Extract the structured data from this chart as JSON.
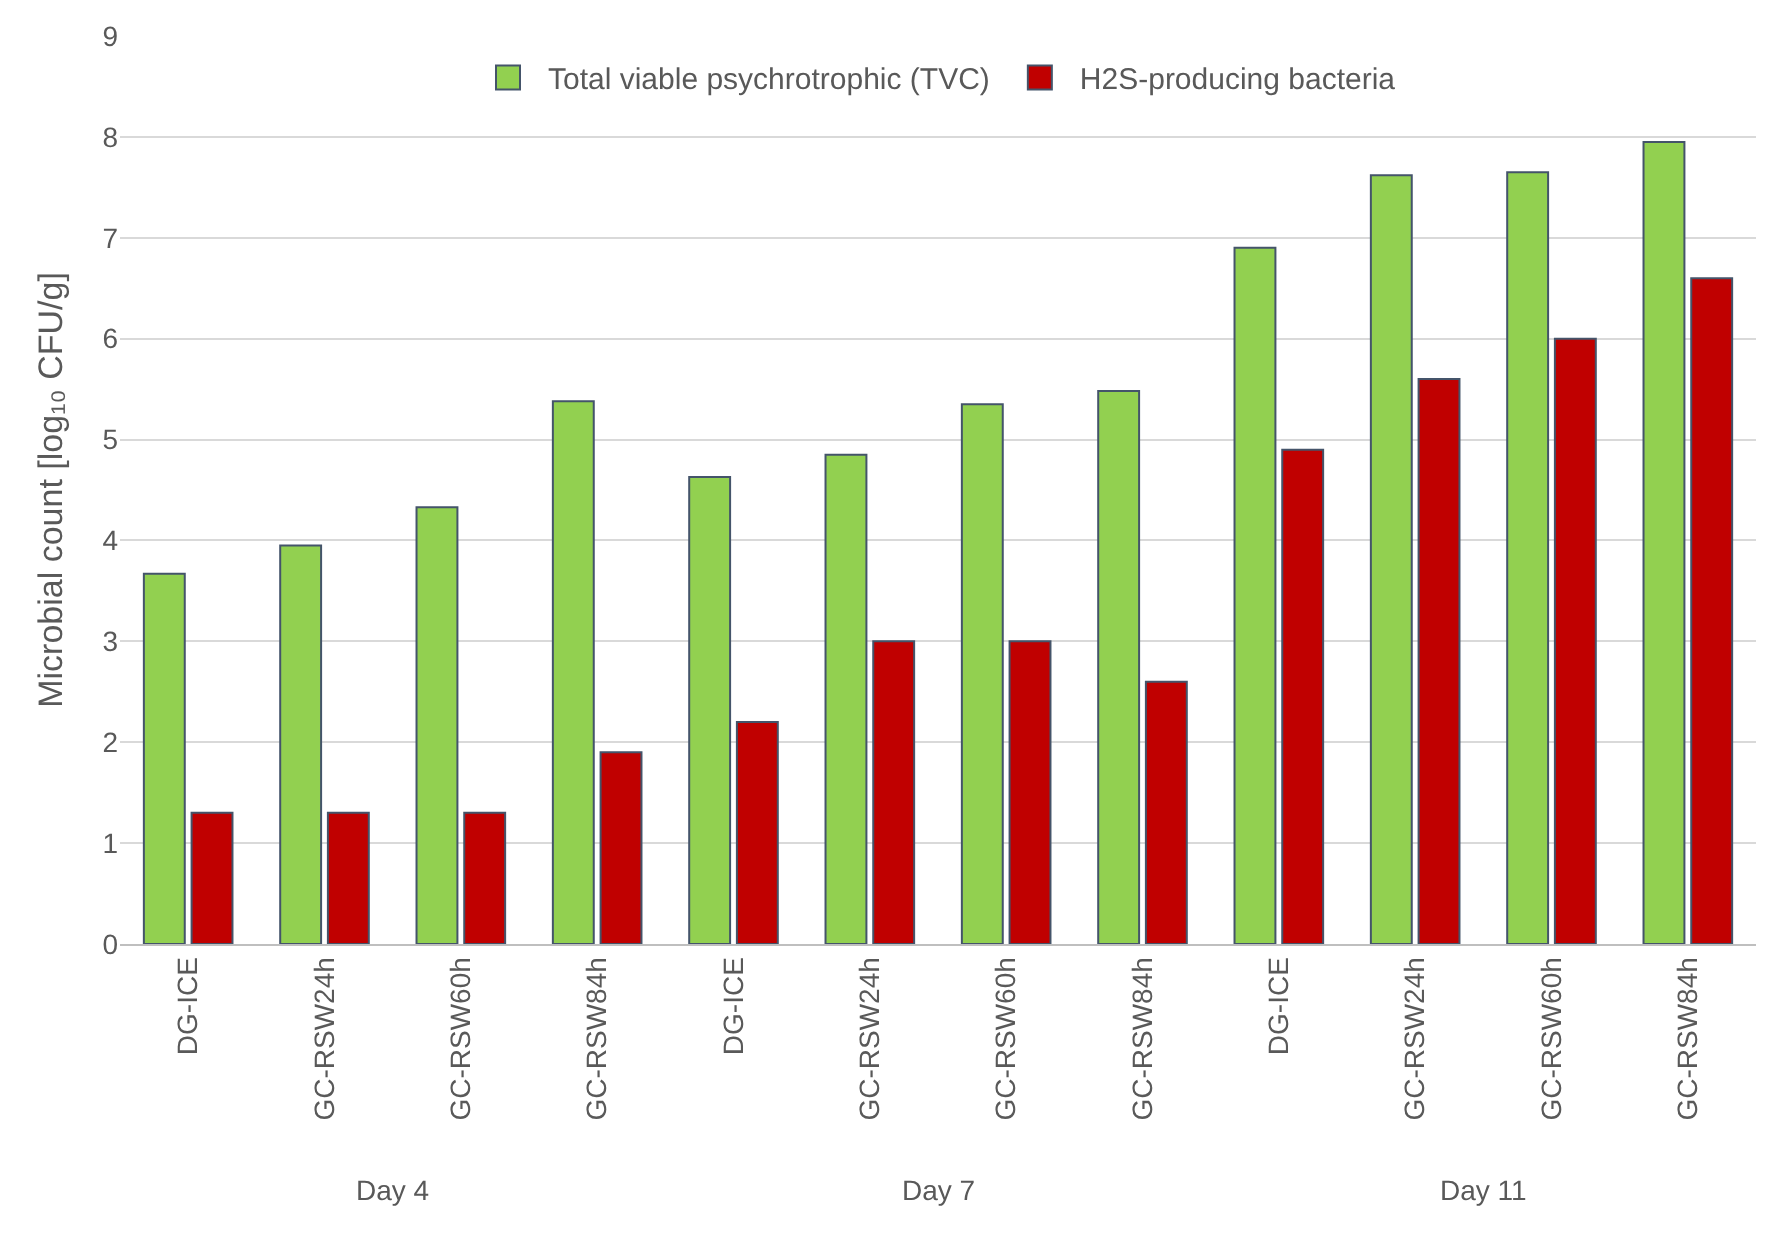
{
  "chart_data": {
    "type": "bar",
    "ylabel": "Microbial count [log₁₀ CFU/g]",
    "categories": [
      "DG-ICE",
      "GC-RSW24h",
      "GC-RSW60h",
      "GC-RSW84h",
      "DG-ICE",
      "GC-RSW24h",
      "GC-RSW60h",
      "GC-RSW84h",
      "DG-ICE",
      "GC-RSW24h",
      "GC-RSW60h",
      "GC-RSW84h"
    ],
    "series": [
      {
        "name": "Total viable psychrotrophic (TVC)",
        "color": "#92d050",
        "values": [
          3.67,
          3.95,
          4.33,
          5.38,
          4.63,
          4.85,
          5.35,
          5.48,
          6.9,
          7.62,
          7.65,
          7.95
        ]
      },
      {
        "name": "H2S-producing bacteria",
        "color": "#c00000",
        "values": [
          1.3,
          1.3,
          1.3,
          1.9,
          2.2,
          3.0,
          3.0,
          2.6,
          4.9,
          5.6,
          6.0,
          6.6
        ]
      }
    ],
    "annotations": [
      "Day 4",
      "Day 7",
      "Day 11"
    ],
    "ylim": [
      0,
      9
    ],
    "yticks": [
      0,
      1,
      2,
      3,
      4,
      5,
      6,
      7,
      8,
      9
    ],
    "grid": "y",
    "legend": "top"
  }
}
